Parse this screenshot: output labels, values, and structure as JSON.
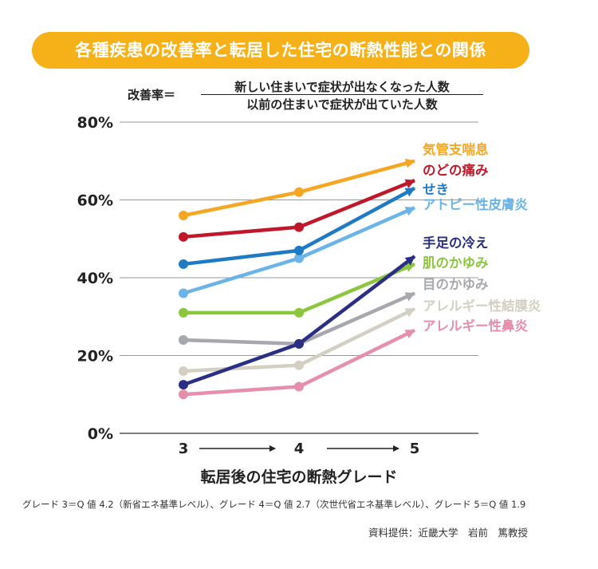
{
  "title": "各種疾患の改善率と転居した住宅の断熱性能との関係",
  "formula": {
    "lhs": "改善率＝",
    "numerator": "新しい住まいで症状が出なくなった人数",
    "denominator": "以前の住まいで症状が出ていた人数"
  },
  "footnote": "グレード 3＝Q 値 4.2（新省エネ基準レベル）、グレード 4＝Q 値 2.7（次世代省エネ基準レベル）、グレード 5＝Q 値 1.9",
  "source": "資料提供：近畿大学　岩前　篤教授",
  "chart_data": {
    "type": "line",
    "title": "各種疾患の改善率と転居した住宅の断熱性能との関係",
    "xlabel": "転居後の住宅の断熱グレード",
    "ylabel": "",
    "categories": [
      "3",
      "4",
      "5"
    ],
    "ylim": [
      0,
      80
    ],
    "yticks": [
      "0%",
      "20%",
      "40%",
      "60%",
      "80%"
    ],
    "grid": true,
    "series": [
      {
        "name": "気管支喘息",
        "values": [
          56,
          62,
          70
        ],
        "color": "#f5a623"
      },
      {
        "name": "のどの痛み",
        "values": [
          50.5,
          53,
          65
        ],
        "color": "#c0172a"
      },
      {
        "name": "せき",
        "values": [
          43.5,
          47,
          63
        ],
        "color": "#1f7ac4"
      },
      {
        "name": "アトピー性皮膚炎",
        "values": [
          36,
          45,
          58
        ],
        "color": "#6cb4e8"
      },
      {
        "name": "手足の冷え",
        "values": [
          12.5,
          23,
          45.5
        ],
        "color": "#2b2f84"
      },
      {
        "name": "肌のかゆみ",
        "values": [
          31,
          31,
          43.5
        ],
        "color": "#8cc63f"
      },
      {
        "name": "目のかゆみ",
        "values": [
          24,
          23,
          36
        ],
        "color": "#a7a8ad"
      },
      {
        "name": "アレルギー性結膜炎",
        "values": [
          16,
          17.5,
          32
        ],
        "color": "#d3cfc2"
      },
      {
        "name": "アレルギー性鼻炎",
        "values": [
          10,
          12,
          26.5
        ],
        "color": "#e58fad"
      }
    ]
  }
}
